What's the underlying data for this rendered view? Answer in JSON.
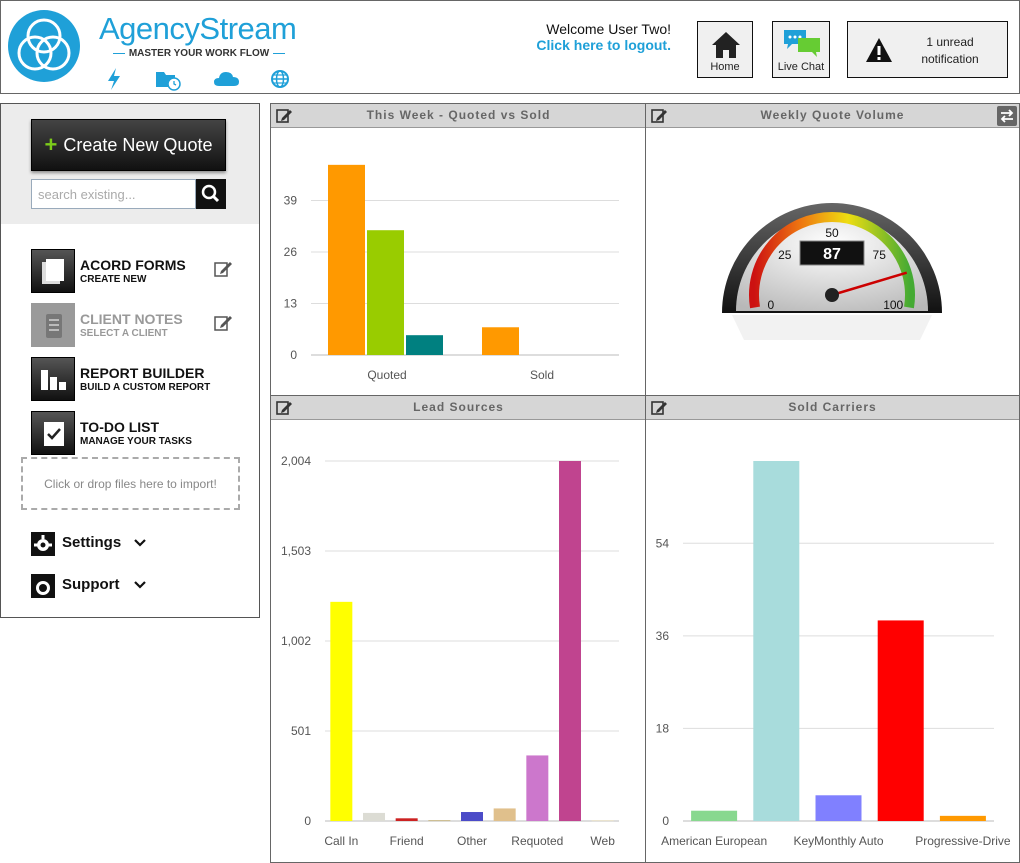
{
  "header": {
    "brand_name": "AgencyStream",
    "tagline": "MASTER YOUR WORK FLOW",
    "brand_icons": [
      "lightning-icon",
      "folder-clock-icon",
      "cloud-icon",
      "globe-icon"
    ],
    "welcome_text": "Welcome User Two!",
    "logout_text": "Click here to logout.",
    "home_label": "Home",
    "chat_label": "Live Chat",
    "notification_text": "1 unread notification"
  },
  "sidebar": {
    "create_button": "Create New Quote",
    "search_placeholder": "search existing...",
    "items": [
      {
        "title": "ACORD FORMS",
        "subtitle": "CREATE NEW",
        "icon": "forms-icon",
        "enabled": true
      },
      {
        "title": "CLIENT NOTES",
        "subtitle": "SELECT A CLIENT",
        "icon": "notes-icon",
        "enabled": false
      },
      {
        "title": "REPORT BUILDER",
        "subtitle": "BUILD A CUSTOM REPORT",
        "icon": "report-icon",
        "enabled": true
      },
      {
        "title": "TO-DO LIST",
        "subtitle": "MANAGE YOUR TASKS",
        "icon": "checklist-icon",
        "enabled": true
      }
    ],
    "dropzone_text": "Click or drop files here to import!",
    "settings_label": "Settings",
    "support_label": "Support"
  },
  "colors": {
    "brand_blue": "#1fa0d8",
    "create_plus": "#7ccc1a"
  },
  "panels": {
    "quoted_vs_sold": {
      "title": "This Week - Quoted vs Sold"
    },
    "quote_volume": {
      "title": "Weekly Quote Volume"
    },
    "lead_sources": {
      "title": "Lead Sources"
    },
    "sold_carriers": {
      "title": "Sold Carriers"
    }
  },
  "chart_data": [
    {
      "id": "quoted_vs_sold",
      "type": "bar",
      "categories": [
        "Quoted",
        "Sold"
      ],
      "series": [
        {
          "values": [
            48,
            7
          ],
          "color": "#ff9900"
        },
        {
          "values": [
            31.5,
            0
          ],
          "color": "#99cc00"
        },
        {
          "values": [
            5,
            0
          ],
          "color": "#008080"
        }
      ],
      "yticks": [
        0,
        13,
        26,
        39
      ],
      "ylim": [
        0,
        52
      ],
      "grid": true
    },
    {
      "id": "quote_volume",
      "type": "gauge",
      "value": 87,
      "min": 0,
      "max": 100,
      "ticks": [
        0,
        25,
        50,
        75,
        100
      ]
    },
    {
      "id": "lead_sources",
      "type": "bar",
      "categories": [
        "Call In",
        "",
        "Friend",
        "",
        "Other",
        "",
        "Requoted",
        "",
        "Web"
      ],
      "values": [
        1220,
        45,
        15,
        5,
        50,
        70,
        365,
        2004,
        5
      ],
      "colors": [
        "#ffff00",
        "#dcdcd4",
        "#cc2222",
        "#c8b888",
        "#4b4bc8",
        "#e0c08c",
        "#cc77cc",
        "#c0448f",
        "#e8e0c8"
      ],
      "yticks": [
        0,
        501,
        1002,
        1503,
        2004
      ],
      "ytick_labels": [
        "0",
        "501",
        "1,002",
        "1,503",
        "2,004"
      ],
      "ylim": [
        0,
        2004
      ],
      "grid": true
    },
    {
      "id": "sold_carriers",
      "type": "bar",
      "categories": [
        "American European",
        "",
        "KeyMonthly Auto",
        "",
        "Progressive-Drive"
      ],
      "values": [
        2,
        70,
        5,
        39,
        1
      ],
      "colors": [
        "#88d88f",
        "#a8dcdc",
        "#8080ff",
        "#ff0000",
        "#ff9900"
      ],
      "yticks": [
        0,
        18,
        36,
        54
      ],
      "ylim": [
        0,
        70
      ],
      "grid": true
    }
  ]
}
